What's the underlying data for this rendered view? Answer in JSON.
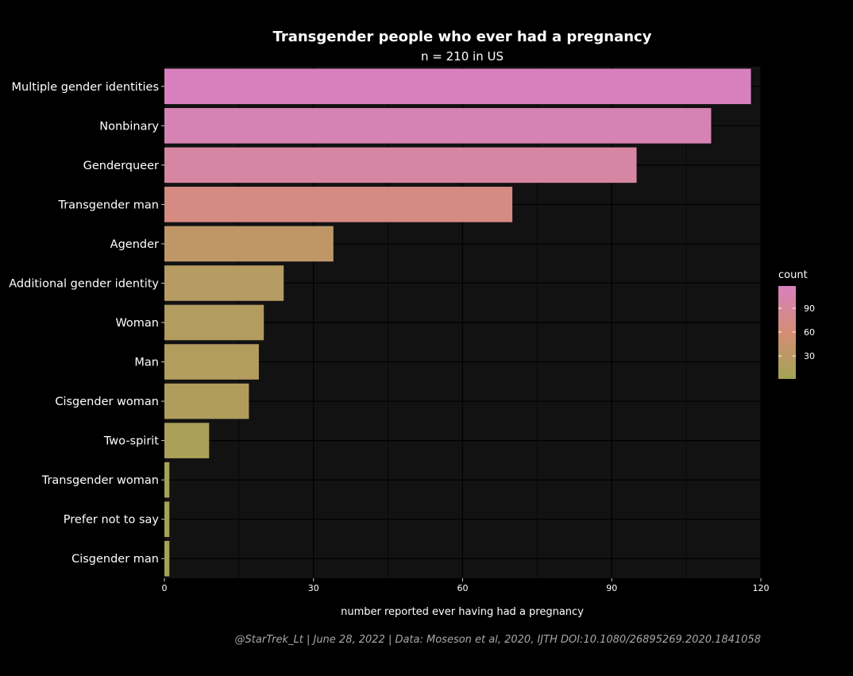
{
  "chart_data": {
    "type": "bar",
    "orientation": "horizontal",
    "title": "Transgender people who ever had a pregnancy",
    "subtitle": "n = 210 in US",
    "xlabel": "number reported ever having had a pregnancy",
    "ylabel": "",
    "caption": "@StarTrek_Lt | June 28, 2022 | Data: Moseson et al, 2020, IJTH DOI:10.1080/26895269.2020.1841058",
    "xlim": [
      0,
      120
    ],
    "xticks": [
      0,
      30,
      60,
      90,
      120
    ],
    "grid": true,
    "categories": [
      "Multiple gender identities",
      "Nonbinary",
      "Genderqueer",
      "Transgender man",
      "Agender",
      "Additional gender identity",
      "Woman",
      "Man",
      "Cisgender woman",
      "Two-spirit",
      "Transgender woman",
      "Prefer not to say",
      "Cisgender man"
    ],
    "values": [
      118,
      110,
      95,
      70,
      34,
      24,
      20,
      19,
      17,
      9,
      1,
      1,
      1
    ],
    "legend": {
      "title": "count",
      "position": "right",
      "ticks": [
        30,
        60,
        90
      ],
      "range": [
        1,
        118
      ],
      "color_low": "#a3a355",
      "color_mid": "#d48e75",
      "color_high": "#d880bf"
    },
    "colors": {
      "background": "#000000",
      "panel": "#121212",
      "grid": "#000000"
    }
  }
}
